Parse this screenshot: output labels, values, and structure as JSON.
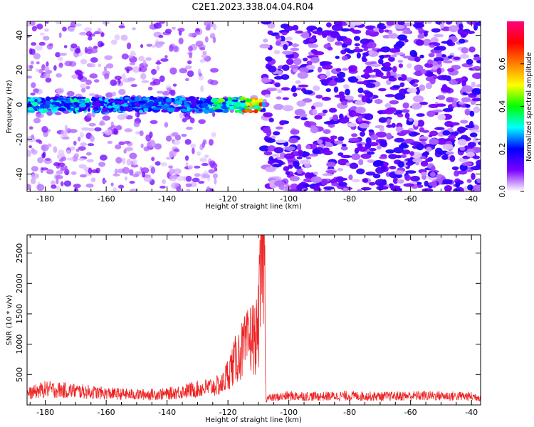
{
  "title": "C2E1.2023.338.04.04.R04",
  "chart_data": [
    {
      "type": "heatmap",
      "xlabel": "Height of straight line (km)",
      "ylabel": "Frequency (Hz)",
      "xlim": [
        -186,
        -37
      ],
      "ylim": [
        -50,
        48
      ],
      "x_ticks": [
        -180,
        -160,
        -140,
        -120,
        -100,
        -80,
        -60,
        -40
      ],
      "y_ticks": [
        -40,
        -20,
        0,
        20,
        40
      ],
      "colorbar": {
        "label": "Normalized spectral amplitude",
        "range": [
          0,
          0.8
        ],
        "ticks": [
          0.0,
          0.2,
          0.4,
          0.6
        ],
        "colormap": [
          "#ffffff",
          "#7b00ff",
          "#0000ff",
          "#00ffff",
          "#00ff00",
          "#ffff00",
          "#ff8000",
          "#ff0000",
          "#ff0080"
        ]
      },
      "features": {
        "signal_band_hz": [
          -4,
          4
        ],
        "signal_height_range_km": [
          -186,
          -108
        ],
        "peak_height_range_km": [
          -115,
          -109
        ],
        "peak_amplitude": 0.7,
        "quiet_gap_km": [
          -124,
          -108
        ],
        "noise_change_km": -108
      }
    },
    {
      "type": "line",
      "xlabel": "Height of straight line (km)",
      "ylabel": "SNR (10 * v/v)",
      "xlim": [
        -186,
        -37
      ],
      "ylim": [
        0,
        2800
      ],
      "x_ticks": [
        -180,
        -160,
        -140,
        -120,
        -100,
        -80,
        -60,
        -40
      ],
      "y_ticks": [
        500,
        1000,
        1500,
        2000,
        2500
      ],
      "series": [
        {
          "color": "#ee2222",
          "x": [
            -186,
            -180,
            -170,
            -160,
            -150,
            -140,
            -135,
            -130,
            -126,
            -122,
            -120,
            -118,
            -116,
            -114,
            -112,
            -111,
            -110,
            -109,
            -108.5,
            -108,
            -107.5,
            -107,
            -100,
            -90,
            -80,
            -70,
            -60,
            -50,
            -40,
            -37
          ],
          "y": [
            180,
            260,
            230,
            190,
            170,
            180,
            220,
            260,
            290,
            330,
            520,
            700,
            860,
            980,
            1150,
            1050,
            1300,
            2350,
            2750,
            2500,
            60,
            110,
            150,
            140,
            150,
            140,
            150,
            150,
            140,
            130
          ]
        }
      ]
    }
  ]
}
